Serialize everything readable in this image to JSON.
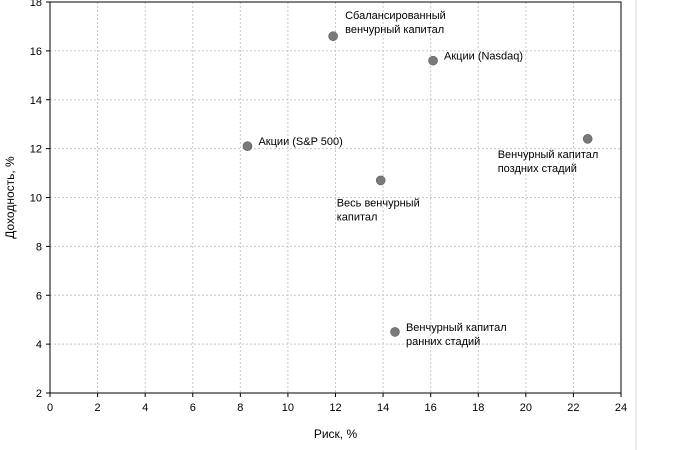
{
  "chart_data": {
    "type": "scatter",
    "title": "",
    "xlabel": "Риск, %",
    "ylabel": "Доходность, %",
    "xlim": [
      0,
      24
    ],
    "ylim": [
      2,
      18
    ],
    "xticks": [
      0,
      2,
      4,
      6,
      8,
      10,
      12,
      14,
      16,
      18,
      20,
      22,
      24
    ],
    "yticks": [
      2,
      4,
      6,
      8,
      10,
      12,
      14,
      16,
      18
    ],
    "grid": true,
    "legend": "none",
    "colors": {
      "point": "#7a7a7a",
      "grid": "#c8c8c8",
      "axis": "#000000"
    },
    "points": [
      {
        "x": 11.9,
        "y": 16.6,
        "label": [
          "Сбалансированный",
          "венчурный капитал"
        ],
        "label_side": "upper-right"
      },
      {
        "x": 16.1,
        "y": 15.6,
        "label": [
          "Акции (Nasdaq)"
        ],
        "label_side": "right"
      },
      {
        "x": 8.3,
        "y": 12.1,
        "label": [
          "Акции (S&P 500)"
        ],
        "label_side": "right"
      },
      {
        "x": 22.6,
        "y": 12.4,
        "label": [
          "Венчурный капитал",
          "поздних стадий"
        ],
        "label_side": "lower-left"
      },
      {
        "x": 13.9,
        "y": 10.7,
        "label": [
          "Весь венчурный",
          "капитал"
        ],
        "label_side": "below-left"
      },
      {
        "x": 14.5,
        "y": 4.5,
        "label": [
          "Венчурный капитал",
          "ранних стадий"
        ],
        "label_side": "right"
      }
    ]
  }
}
